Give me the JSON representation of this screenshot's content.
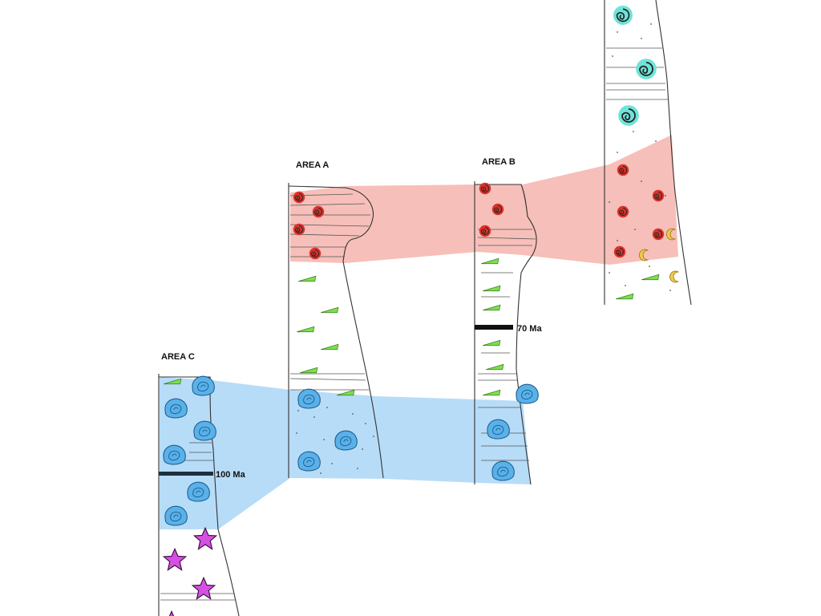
{
  "areas": {
    "a": "AREA A",
    "b": "AREA B",
    "c": "AREA C"
  },
  "time_markers": {
    "b": "70 Ma",
    "c": "100 Ma"
  },
  "colors": {
    "red_correlation": "#f4a9a1",
    "blue_correlation": "#9fd0f5",
    "ammonite_red": "#d9322a",
    "ammonite_teal": "#6fe3d8",
    "leaf_green": "#7be04e",
    "oyster_blue": "#5ab1ea",
    "star_purple": "#d64fe3",
    "crescent_yellow": "#f2c94c",
    "marker_black": "#111111"
  },
  "icons": [
    "ammonite-icon",
    "leaf-fossil-icon",
    "oyster-icon",
    "starfish-icon",
    "crescent-fossil-icon"
  ]
}
